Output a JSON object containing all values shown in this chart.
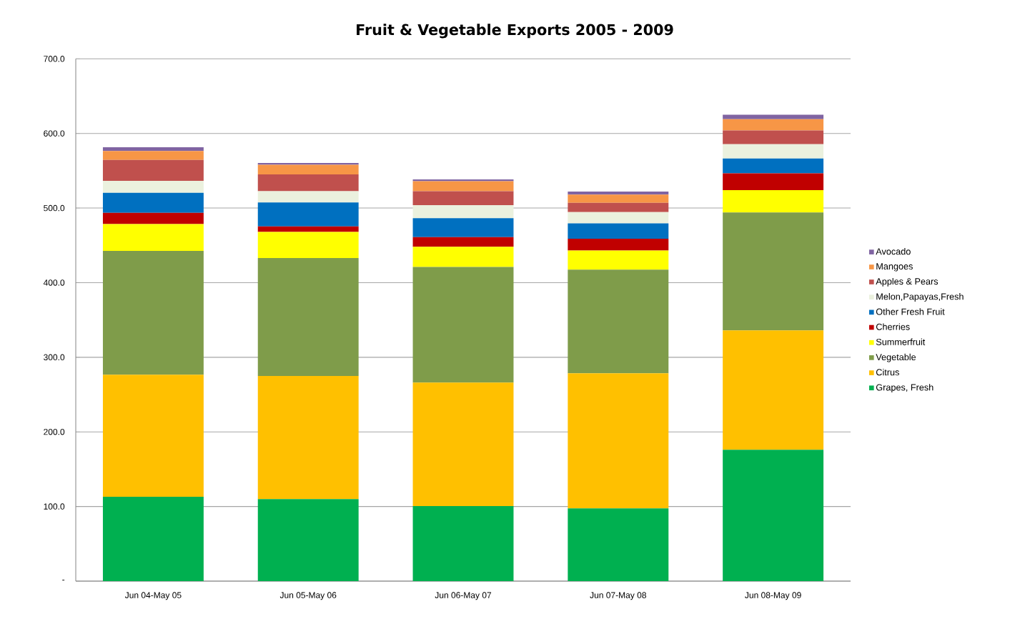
{
  "chart_data": {
    "type": "bar",
    "stacked": true,
    "title": "Fruit & Vegetable Exports 2005 - 2009",
    "categories": [
      "Jun 04-May 05",
      "Jun 05-May 06",
      "Jun 06-May 07",
      "Jun 07-May 08",
      "Jun 08-May 09"
    ],
    "series": [
      {
        "name": "Grapes, Fresh",
        "color": "#00b050",
        "values": [
          113,
          110,
          100.5,
          97.5,
          176
        ]
      },
      {
        "name": "Citrus",
        "color": "#ffc000",
        "values": [
          163.5,
          165,
          165.5,
          181,
          160
        ]
      },
      {
        "name": "Vegetable",
        "color": "#7f9c4a",
        "values": [
          166,
          158,
          155,
          139,
          158
        ]
      },
      {
        "name": "Summerfruit",
        "color": "#ffff00",
        "values": [
          36,
          35,
          27,
          25.5,
          30
        ]
      },
      {
        "name": "Cherries",
        "color": "#c00000",
        "values": [
          15,
          7.5,
          13,
          16,
          22.5
        ]
      },
      {
        "name": "Other Fresh Fruit",
        "color": "#0070c0",
        "values": [
          27,
          32,
          25.5,
          20.5,
          20
        ]
      },
      {
        "name": "Melon,Papayas,Fresh",
        "color": "#ebf1de",
        "values": [
          16,
          15,
          17.5,
          15,
          19
        ]
      },
      {
        "name": "Apples & Pears",
        "color": "#c0504d",
        "values": [
          28,
          22.5,
          18.5,
          12.5,
          18.5
        ]
      },
      {
        "name": "Mangoes",
        "color": "#f79646",
        "values": [
          12,
          13,
          13.5,
          11,
          15
        ]
      },
      {
        "name": "Avocado",
        "color": "#8064a2",
        "values": [
          5,
          2.5,
          2.5,
          4,
          6
        ]
      }
    ],
    "ylim": [
      0,
      700
    ],
    "yticks": [
      {
        "value": 0,
        "label": "-"
      },
      {
        "value": 100,
        "label": "100.0"
      },
      {
        "value": 200,
        "label": "200.0"
      },
      {
        "value": 300,
        "label": "300.0"
      },
      {
        "value": 400,
        "label": "400.0"
      },
      {
        "value": 500,
        "label": "500.0"
      },
      {
        "value": 600,
        "label": "600.0"
      },
      {
        "value": 700,
        "label": "700.0"
      }
    ],
    "grid": "y",
    "legend": "right"
  }
}
